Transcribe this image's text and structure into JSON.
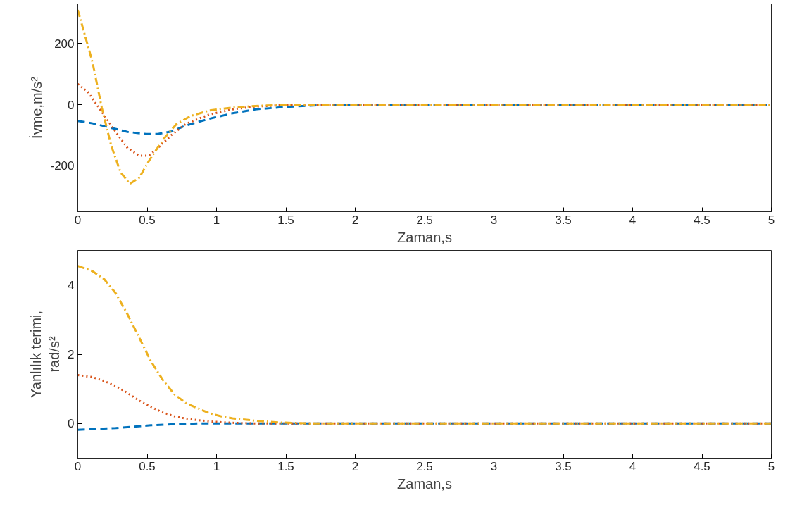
{
  "chart_data": [
    {
      "type": "line",
      "xlabel": "Zaman,s",
      "ylabel": "İvme,m/s²",
      "xlim": [
        0,
        5
      ],
      "ylim": [
        -350,
        330
      ],
      "xticks": [
        0,
        0.5,
        1,
        1.5,
        2,
        2.5,
        3,
        3.5,
        4,
        4.5,
        5
      ],
      "yticks": [
        -200,
        0,
        200
      ],
      "grid": false,
      "series": [
        {
          "color": "#0072bd",
          "line_style": "dashed",
          "x": [
            0,
            0.106,
            0.207,
            0.359,
            0.493,
            0.577,
            0.678,
            0.779,
            0.948,
            1.116,
            1.28,
            1.45,
            1.62,
            1.79,
            2,
            5
          ],
          "values": [
            -53,
            -61,
            -72,
            -89,
            -96,
            -96,
            -87,
            -68,
            -46,
            -28,
            -15,
            -9,
            -4,
            -1,
            0,
            0
          ]
        },
        {
          "color": "#d95319",
          "line_style": "dotted",
          "x": [
            0,
            0.072,
            0.14,
            0.207,
            0.274,
            0.359,
            0.443,
            0.51,
            0.577,
            0.678,
            0.779,
            0.948,
            1.116,
            1.28,
            1.45,
            1.7,
            5
          ],
          "values": [
            68,
            42,
            -2,
            -46,
            -89,
            -142,
            -167,
            -167,
            -142,
            -98,
            -63,
            -32,
            -15,
            -6,
            -2,
            0,
            0
          ]
        },
        {
          "color": "#edb120",
          "line_style": "dashdot",
          "x": [
            0,
            0.106,
            0.173,
            0.24,
            0.308,
            0.375,
            0.443,
            0.51,
            0.611,
            0.712,
            0.813,
            0.948,
            1.116,
            1.28,
            1.45,
            1.7,
            5
          ],
          "values": [
            310,
            139,
            -10,
            -133,
            -221,
            -259,
            -239,
            -186,
            -116,
            -63,
            -37,
            -19,
            -9,
            -4,
            -1,
            0,
            0
          ]
        }
      ]
    },
    {
      "type": "line",
      "xlabel": "Zaman,s",
      "ylabel": "Yanlılık terimi,\nrad/s²",
      "xlim": [
        0,
        5
      ],
      "ylim": [
        -1,
        5
      ],
      "xticks": [
        0,
        0.5,
        1,
        1.5,
        2,
        2.5,
        3,
        3.5,
        4,
        4.5,
        5
      ],
      "yticks": [
        0,
        2,
        4
      ],
      "grid": false,
      "series": [
        {
          "color": "#0072bd",
          "line_style": "dashed",
          "x": [
            0,
            0.274,
            0.527,
            0.695,
            0.864,
            5
          ],
          "values": [
            -0.18,
            -0.13,
            -0.05,
            -0.02,
            0,
            0
          ]
        },
        {
          "color": "#d95319",
          "line_style": "dotted",
          "x": [
            0,
            0.106,
            0.19,
            0.274,
            0.359,
            0.443,
            0.527,
            0.611,
            0.695,
            0.779,
            0.948,
            1.116,
            1.3,
            5
          ],
          "values": [
            1.4,
            1.34,
            1.23,
            1.08,
            0.88,
            0.66,
            0.48,
            0.32,
            0.21,
            0.14,
            0.06,
            0.02,
            0,
            0
          ]
        },
        {
          "color": "#edb120",
          "line_style": "dashdot",
          "x": [
            0,
            0.106,
            0.19,
            0.274,
            0.359,
            0.443,
            0.527,
            0.611,
            0.695,
            0.779,
            0.864,
            0.948,
            1.03,
            1.116,
            1.28,
            1.45,
            1.7,
            5
          ],
          "values": [
            4.55,
            4.4,
            4.17,
            3.76,
            3.15,
            2.48,
            1.8,
            1.27,
            0.85,
            0.59,
            0.44,
            0.3,
            0.21,
            0.15,
            0.08,
            0.03,
            0,
            0
          ]
        }
      ]
    }
  ]
}
